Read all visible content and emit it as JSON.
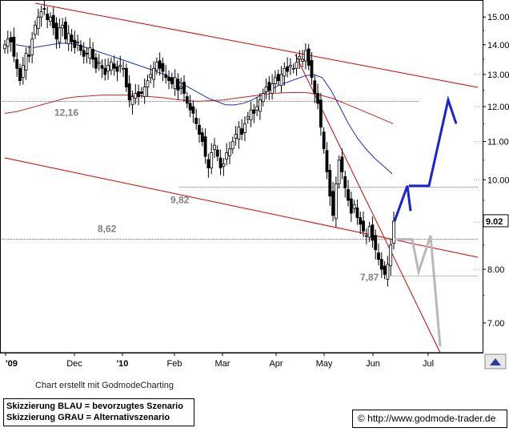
{
  "chart_data": {
    "type": "candlestick",
    "price_axis": {
      "ticks": [
        "15.00",
        "14.00",
        "13.00",
        "12.00",
        "11.00",
        "10.00",
        "8.00",
        "7.00"
      ],
      "tick_values": [
        15.0,
        14.0,
        13.0,
        12.0,
        11.0,
        10.0,
        8.0,
        7.0
      ],
      "range": [
        6.5,
        15.65
      ],
      "scale": "log",
      "current_value_label": "9.02",
      "current_value": 9.02
    },
    "time_axis": {
      "labels": [
        "'09",
        "Dec",
        "'10",
        "Feb",
        "Mar",
        "Apr",
        "May",
        "Jun",
        "Jul"
      ]
    },
    "horizontal_levels": [
      {
        "label": "12,16",
        "value": 12.16
      },
      {
        "label": "9,82",
        "value": 9.82
      },
      {
        "label": "8,62",
        "value": 8.62
      },
      {
        "label": "7,87",
        "value": 7.87
      }
    ],
    "price_series": {
      "name": "",
      "values": [
        14.0,
        14.2,
        14.1,
        13.6,
        13.2,
        12.8,
        13.3,
        13.7,
        13.6,
        14.2,
        14.7,
        15.0,
        15.2,
        15.3,
        14.9,
        15.0,
        14.6,
        14.2,
        14.6,
        14.7,
        14.2,
        14.4,
        14.1,
        13.9,
        14.1,
        13.8,
        13.6,
        13.7,
        13.9,
        13.5,
        13.2,
        13.4,
        13.2,
        13.0,
        13.3,
        13.4,
        13.2,
        13.1,
        13.3,
        13.2,
        12.6,
        12.2,
        12.3,
        12.4,
        12.3,
        12.4,
        12.6,
        12.8,
        13.0,
        13.2,
        13.4,
        13.2,
        13.1,
        12.9,
        12.8,
        12.7,
        12.9,
        12.5,
        12.6,
        12.4,
        12.1,
        11.9,
        11.8,
        11.5,
        11.2,
        11.0,
        10.6,
        10.3,
        10.7,
        10.9,
        10.6,
        10.3,
        10.4,
        10.7,
        10.8,
        11.0,
        11.2,
        11.4,
        11.2,
        11.5,
        11.7,
        11.9,
        11.8,
        12.0,
        12.2,
        12.4,
        12.6,
        12.5,
        12.7,
        12.9,
        12.8,
        13.0,
        13.2,
        13.1,
        13.3,
        13.2,
        13.4,
        13.6,
        13.5,
        13.8,
        13.3,
        12.9,
        12.4,
        12.1,
        11.4,
        10.8,
        10.2,
        9.6,
        9.15,
        9.9,
        10.5,
        10.2,
        9.8,
        9.5,
        9.2,
        9.4,
        9.1,
        8.95,
        8.8,
        8.7,
        8.9,
        8.6,
        8.4,
        8.2,
        8.0,
        7.9,
        8.1,
        8.5,
        9.02
      ]
    },
    "moving_averages": [
      {
        "name": "",
        "color": "#1e2fb8",
        "values": [
          14.0,
          13.95,
          13.9,
          13.95,
          14.0,
          14.05,
          14.05,
          14.0,
          13.9,
          13.8,
          13.7,
          13.6,
          13.5,
          13.4,
          13.3,
          13.2,
          13.1,
          13.0,
          12.85,
          12.7,
          12.55,
          12.4,
          12.25,
          12.15,
          12.05,
          12.05,
          12.1,
          12.2,
          12.35,
          12.5,
          12.65,
          12.75,
          12.85,
          12.95,
          13.0,
          12.9,
          12.5,
          12.0,
          11.5,
          11.1,
          10.8,
          10.55,
          10.35,
          10.15
        ]
      },
      {
        "name": "",
        "color": "#cc2222",
        "values": [
          11.8,
          11.85,
          11.95,
          12.05,
          12.15,
          12.25,
          12.3,
          12.32,
          12.35,
          12.35,
          12.35,
          12.33,
          12.3,
          12.27,
          12.22,
          12.18,
          12.16,
          12.18,
          12.2,
          12.25,
          12.3,
          12.35,
          12.4,
          12.42,
          12.43,
          12.42,
          12.35,
          12.25,
          12.1,
          11.95,
          11.8,
          11.65,
          11.5
        ]
      }
    ],
    "scenario_blue": {
      "label": "Skizzierung BLAU = bevorzugtes Szenario",
      "color": "#1a22d6",
      "values": [
        9.02,
        9.85,
        9.25
      ]
    },
    "scenario_blue_b": {
      "values": [
        9.85,
        9.85,
        12.2,
        11.5
      ]
    },
    "scenario_grey": {
      "label": "Skizzierung GRAU = Alternativszenario",
      "color": "#b8b8b8",
      "values": [
        8.62,
        8.62,
        7.95,
        8.7,
        6.6
      ]
    }
  },
  "footer": {
    "credit": "Chart erstellt mit GodmodeCharting",
    "legend_blue": "Skizzierung BLAU = bevorzugtes Szenario",
    "legend_grey": "Skizzierung GRAU = Alternativszenario",
    "copyright": "© http://www.godmode-trader.de"
  }
}
